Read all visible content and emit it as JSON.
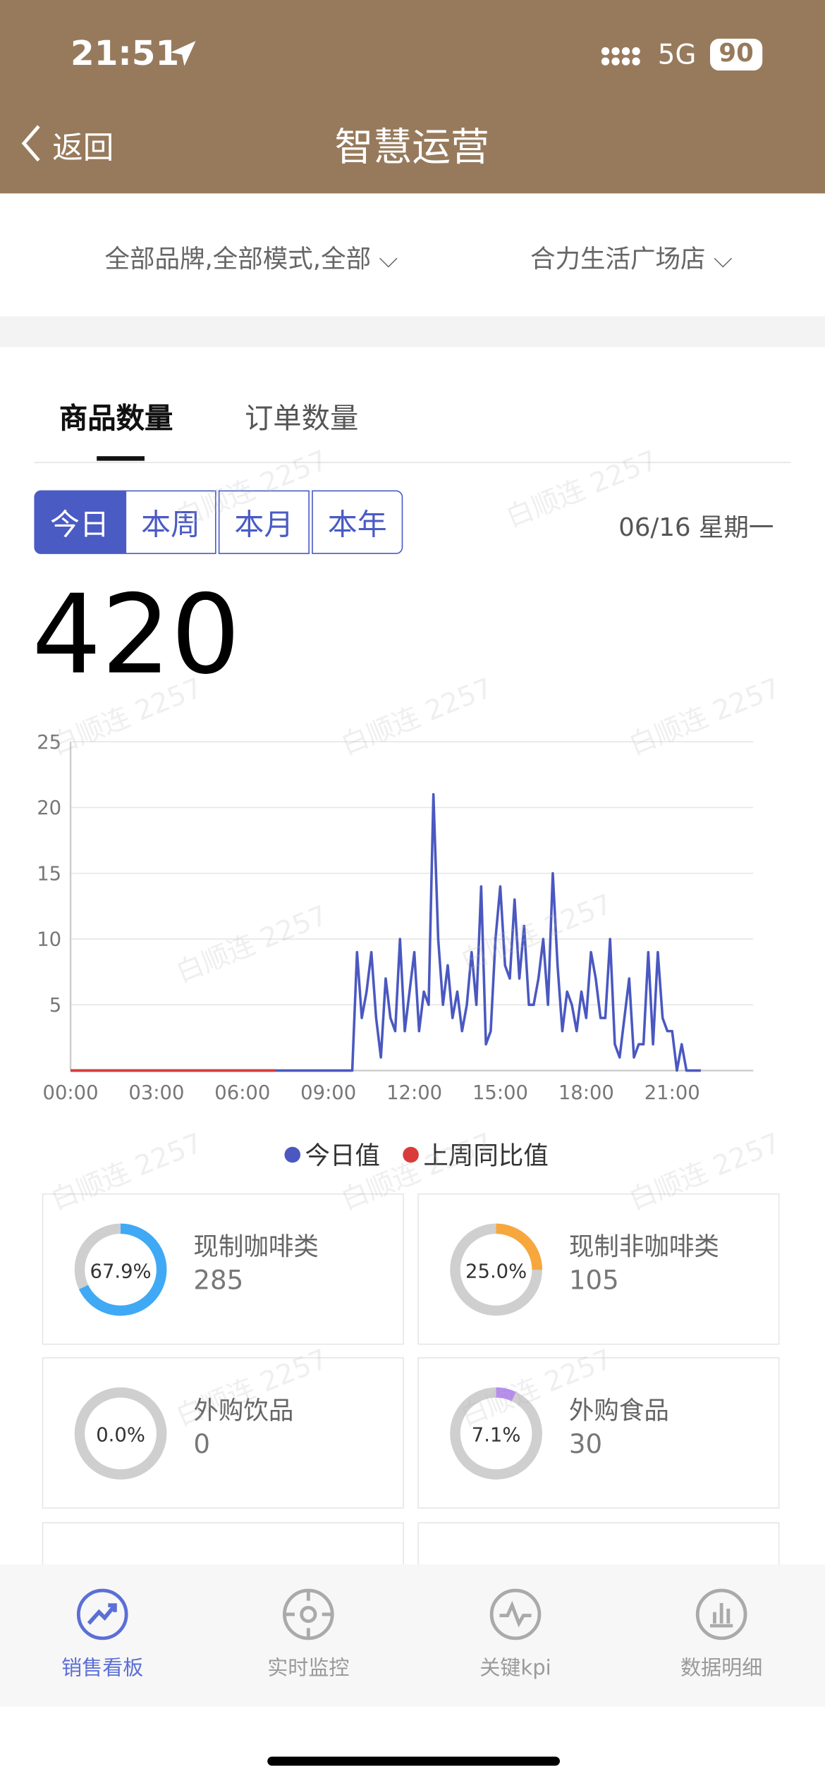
{
  "status_bar": {
    "time": "21:51",
    "network": "5G",
    "battery": "90"
  },
  "nav": {
    "back": "返回",
    "title": "智慧运营"
  },
  "filters": [
    "全部品牌,全部模式,全部",
    "合力生活广场店"
  ],
  "tabs": [
    "商品数量",
    "订单数量"
  ],
  "periods": [
    "今日",
    "本周",
    "本月",
    "本年"
  ],
  "date": "06/16 星期一",
  "total": 420,
  "chart_data": {
    "type": "line",
    "categories": [
      "00:00",
      null,
      null,
      null,
      null,
      null,
      null,
      null,
      null,
      null,
      null,
      null,
      null,
      null,
      null,
      null,
      null,
      null,
      "03:00",
      null,
      null,
      null,
      null,
      null,
      null,
      null,
      null,
      null,
      null,
      null,
      null,
      null,
      null,
      null,
      null,
      null,
      "06:00",
      null,
      null,
      null,
      null,
      null,
      null,
      null,
      null,
      null,
      null,
      null,
      null,
      null,
      null,
      null,
      null,
      null,
      "09:00",
      null,
      null,
      null,
      null,
      null,
      null,
      null,
      null,
      null,
      null,
      null,
      null,
      null,
      null,
      null,
      null,
      null,
      "12:00",
      null,
      null,
      null,
      null,
      null,
      null,
      null,
      null,
      null,
      null,
      null,
      null,
      null,
      null,
      null,
      null,
      null,
      "15:00",
      null,
      null,
      null,
      null,
      null,
      null,
      null,
      null,
      null,
      null,
      null,
      null,
      null,
      null,
      null,
      null,
      null,
      "18:00",
      null,
      null,
      null,
      null,
      null,
      null,
      null,
      null,
      null,
      null,
      null,
      null,
      null,
      null,
      null,
      null,
      null,
      "21:00",
      null,
      null,
      null,
      null,
      null,
      null,
      null,
      null,
      null,
      null,
      null,
      null,
      null,
      null,
      null,
      null,
      null
    ],
    "series": [
      {
        "name": "今日值",
        "color": "#4a58c0",
        "values": [
          0,
          0,
          0,
          0,
          0,
          0,
          0,
          0,
          0,
          0,
          0,
          0,
          0,
          0,
          0,
          0,
          0,
          0,
          0,
          0,
          0,
          0,
          0,
          0,
          0,
          0,
          0,
          0,
          0,
          0,
          0,
          0,
          0,
          0,
          0,
          0,
          0,
          0,
          0,
          0,
          0,
          0,
          0,
          0,
          0,
          0,
          0,
          0,
          0,
          0,
          0,
          0,
          0,
          0,
          0,
          0,
          0,
          0,
          0,
          0,
          9,
          4,
          6,
          9,
          4,
          1,
          7,
          4,
          3,
          10,
          3,
          6,
          9,
          3,
          6,
          5,
          21,
          10,
          5,
          8,
          4,
          6,
          3,
          5,
          9,
          5,
          14,
          2,
          3,
          10,
          14,
          8,
          7,
          13,
          7,
          11,
          5,
          5,
          7,
          10,
          5,
          15,
          8,
          3,
          6,
          5,
          3,
          6,
          4,
          9,
          7,
          4,
          4,
          10,
          2,
          1,
          4,
          7,
          1,
          2,
          2,
          9,
          2,
          9,
          4,
          3,
          3,
          0,
          2,
          0,
          0,
          0,
          0,
          null,
          null,
          null,
          null,
          null,
          null,
          null,
          null,
          null,
          null,
          null
        ]
      },
      {
        "name": "上周同比值",
        "color": "#d93b3b",
        "values": [
          0,
          0,
          0,
          0,
          0,
          0,
          0,
          0,
          0,
          0,
          0,
          0,
          0,
          0,
          0,
          0,
          0,
          0,
          0,
          0,
          0,
          0,
          0,
          0,
          0,
          0,
          0,
          0,
          0,
          0,
          0,
          0,
          0,
          0,
          0,
          0,
          0,
          0,
          0,
          0,
          0,
          0,
          0,
          0,
          null,
          null,
          null,
          null,
          null,
          null,
          null,
          null,
          null,
          null,
          null,
          null,
          null,
          null,
          null,
          null,
          null,
          null,
          null,
          null,
          null,
          null,
          null,
          null,
          null,
          null,
          null,
          null,
          null,
          null,
          null,
          null,
          null,
          null,
          null,
          null,
          null,
          null,
          null,
          null,
          null,
          null,
          null,
          null,
          null,
          null,
          null,
          null,
          null,
          null,
          null,
          null,
          null,
          null,
          null,
          null,
          null,
          null,
          null,
          null,
          null,
          null,
          null,
          null,
          null,
          null,
          null,
          null,
          null,
          null,
          null,
          null,
          null,
          null,
          null,
          null,
          null,
          null,
          null,
          null,
          null,
          null,
          null,
          null,
          null,
          null,
          null,
          null,
          null,
          null,
          null,
          null,
          null,
          null,
          null,
          null,
          null,
          null,
          null,
          null
        ]
      }
    ],
    "ylim": [
      0,
      25
    ],
    "yticks": [
      5,
      10,
      15,
      20,
      25
    ],
    "grid": true,
    "legend": "bottom"
  },
  "cards": [
    {
      "name": "现制咖啡类",
      "percent": {
        "value": 67.9,
        "label": "67.9%"
      },
      "count": 285,
      "color": "#3fa9f5"
    },
    {
      "name": "现制非咖啡类",
      "percent": {
        "value": 25.0,
        "label": "25.0%"
      },
      "count": 105,
      "color": "#f7a73b"
    },
    {
      "name": "外购饮品",
      "percent": {
        "value": 0,
        "label": "0.0%"
      },
      "count": 0,
      "color": "#3fa9f5"
    },
    {
      "name": "外购食品",
      "percent": {
        "value": 7.1,
        "label": "7.1%"
      },
      "count": 30,
      "color": "#b78af0"
    }
  ],
  "bottom_nav": [
    "销售看板",
    "实时监控",
    "关键kpi",
    "数据明细"
  ],
  "watermark": "白顺连 2257"
}
